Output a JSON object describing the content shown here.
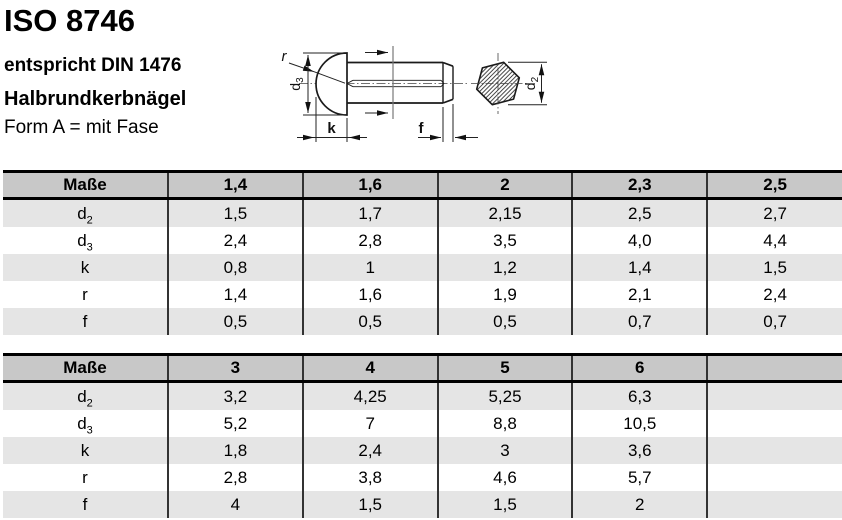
{
  "header": {
    "title": "ISO 8746",
    "subtitle": "entspricht DIN 1476",
    "product": "Halbrundkerbnägel",
    "form": "Form A = mit Fase"
  },
  "drawing": {
    "label_r": "r",
    "label_d3_main": "d",
    "label_d3_sub": "3",
    "label_k": "k",
    "label_f": "f",
    "label_d2_main": "d",
    "label_d2_sub": "2"
  },
  "tables": [
    {
      "header": [
        "Maße",
        "1,4",
        "1,6",
        "2",
        "2,3",
        "2,5"
      ],
      "rows": [
        {
          "label": "d",
          "sub": "2",
          "values": [
            "1,5",
            "1,7",
            "2,15",
            "2,5",
            "2,7"
          ]
        },
        {
          "label": "d",
          "sub": "3",
          "values": [
            "2,4",
            "2,8",
            "3,5",
            "4,0",
            "4,4"
          ]
        },
        {
          "label": "k",
          "sub": "",
          "values": [
            "0,8",
            "1",
            "1,2",
            "1,4",
            "1,5"
          ]
        },
        {
          "label": "r",
          "sub": "",
          "values": [
            "1,4",
            "1,6",
            "1,9",
            "2,1",
            "2,4"
          ]
        },
        {
          "label": "f",
          "sub": "",
          "values": [
            "0,5",
            "0,5",
            "0,5",
            "0,7",
            "0,7"
          ]
        }
      ]
    },
    {
      "header": [
        "Maße",
        "3",
        "4",
        "5",
        "6",
        ""
      ],
      "rows": [
        {
          "label": "d",
          "sub": "2",
          "values": [
            "3,2",
            "4,25",
            "5,25",
            "6,3",
            ""
          ]
        },
        {
          "label": "d",
          "sub": "3",
          "values": [
            "5,2",
            "7",
            "8,8",
            "10,5",
            ""
          ]
        },
        {
          "label": "k",
          "sub": "",
          "values": [
            "1,8",
            "2,4",
            "3",
            "3,6",
            ""
          ]
        },
        {
          "label": "r",
          "sub": "",
          "values": [
            "2,8",
            "3,8",
            "4,6",
            "5,7",
            ""
          ]
        },
        {
          "label": "f",
          "sub": "",
          "values": [
            "4",
            "1,5",
            "1,5",
            "2",
            ""
          ]
        }
      ]
    }
  ],
  "colors": {
    "table_header_bg": "#c8c8c8",
    "table_alt_row_bg": "#e5e5e5",
    "table_border": "#000000",
    "table_grid_line": "#333333",
    "drawing_line": "#1a1a1a"
  }
}
